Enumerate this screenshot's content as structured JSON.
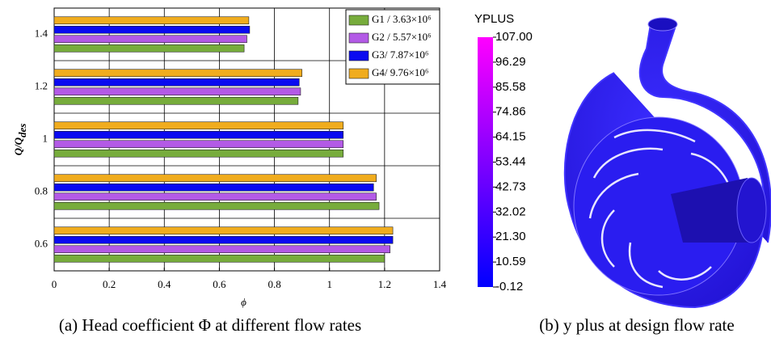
{
  "chart_data": [
    {
      "type": "hbar",
      "caption": "(a) Head coefficient Φ at different flow rates",
      "xlabel": "ϕ",
      "ylabel": "Q/Q",
      "ylabel_sub": "des",
      "categories": [
        "0.6",
        "0.8",
        "1",
        "1.2",
        "1.4"
      ],
      "series": [
        {
          "name": "G1 / 3.63×10⁶",
          "color": "#77ac3c",
          "values": [
            1.2,
            1.18,
            1.05,
            0.886,
            0.69
          ]
        },
        {
          "name": "G2 / 5.57×10⁶",
          "color": "#b35ae6",
          "values": [
            1.22,
            1.17,
            1.05,
            0.895,
            0.7
          ]
        },
        {
          "name": "G3/ 7.87×10⁶",
          "color": "#0a0af0",
          "values": [
            1.23,
            1.16,
            1.05,
            0.89,
            0.71
          ]
        },
        {
          "name": "G4/ 9.76×10⁶",
          "color": "#f0ac1e",
          "values": [
            1.23,
            1.17,
            1.05,
            0.9,
            0.707
          ]
        }
      ],
      "xlim": [
        0,
        1.4
      ],
      "xticks": [
        0,
        0.2,
        0.4,
        0.6,
        0.8,
        1,
        1.2,
        1.4
      ],
      "grid": true,
      "legend": "top-right"
    },
    {
      "type": "colorbar",
      "caption": "(b) y plus at design flow rate",
      "title": "YPLUS",
      "ylim": [
        -0.12,
        107
      ],
      "yticks": [
        {
          "value": 107,
          "label": "107.00"
        },
        96.29,
        85.58,
        74.86,
        64.15,
        53.44,
        42.73,
        32.02,
        {
          "value": 21.3,
          "label": "21.30"
        },
        10.59,
        -0.12
      ],
      "colors": [
        "#0000ff",
        "#ff00ff"
      ]
    }
  ]
}
